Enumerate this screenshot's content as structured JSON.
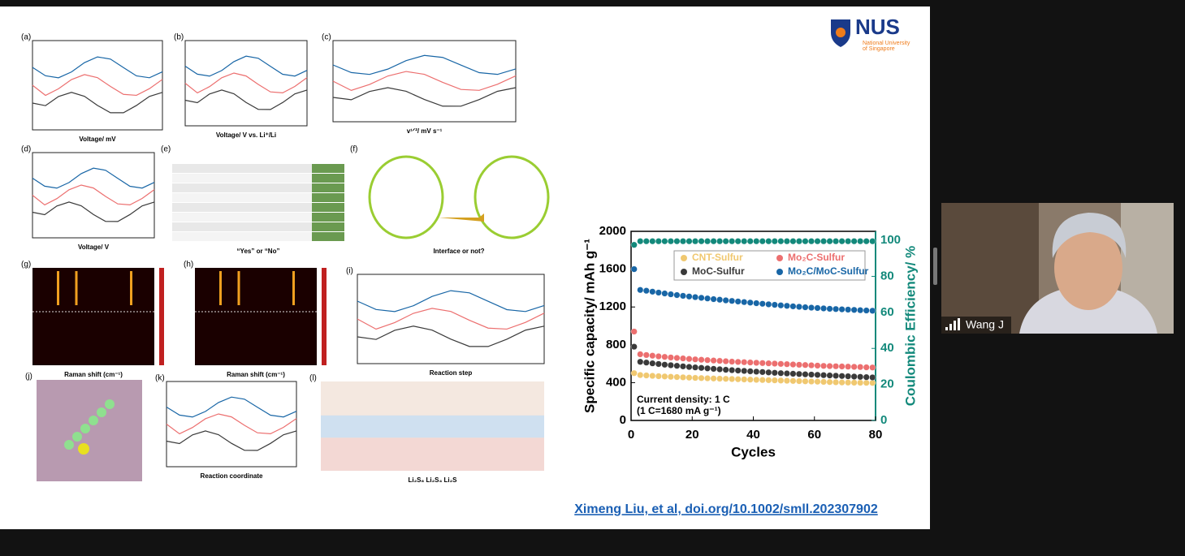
{
  "slide": {
    "logo": {
      "name": "NUS",
      "subtitle_1": "National University",
      "subtitle_2": "of Singapore"
    },
    "panels": [
      {
        "label": "(a)",
        "caption": "Voltage/ mV"
      },
      {
        "label": "(b)",
        "caption": "Voltage/ V vs. Li⁺/Li"
      },
      {
        "label": "(c)",
        "caption": "v¹ᐟ²/ mV s⁻¹"
      },
      {
        "label": "(d)",
        "caption": "Voltage/ V"
      },
      {
        "label": "(e)",
        "caption": "“Yes” or “No”"
      },
      {
        "label": "(f)",
        "caption": "Interface or not?"
      },
      {
        "label": "(g)",
        "caption": "Raman shift (cm⁻¹)"
      },
      {
        "label": "(h)",
        "caption": "Raman shift (cm⁻¹)"
      },
      {
        "label": "(i)",
        "caption": "Reaction step"
      },
      {
        "label": "(j)"
      },
      {
        "label": "(k)",
        "caption": "Reaction coordinate"
      },
      {
        "label": "(l)",
        "caption": "Li₂S₈     Li₂S₄     Li₂S"
      }
    ],
    "citation": "Ximeng Liu, et al, doi.org/10.1002/smll.202307902"
  },
  "chart_data": {
    "type": "scatter",
    "ylabel": "Specific capacity/ mAh g⁻¹",
    "y2label": "Coulombic Efficiency/ %",
    "xlabel": "Cycles",
    "annotation_1": "Current density: 1 C",
    "annotation_2": "(1 C=1680 mA g⁻¹)",
    "xlim": [
      0,
      80
    ],
    "xticks": [
      0,
      20,
      40,
      60,
      80
    ],
    "ylim": [
      0,
      2000
    ],
    "yticks": [
      0,
      400,
      800,
      1200,
      1600,
      2000
    ],
    "y2lim": [
      0,
      105
    ],
    "y2ticks": [
      0,
      20,
      40,
      60,
      80,
      100
    ],
    "x": [
      1,
      3,
      5,
      7,
      9,
      11,
      13,
      15,
      17,
      19,
      21,
      23,
      25,
      27,
      29,
      31,
      33,
      35,
      37,
      39,
      41,
      43,
      45,
      47,
      49,
      51,
      53,
      55,
      57,
      59,
      61,
      63,
      65,
      67,
      69,
      71,
      73,
      75,
      77,
      79
    ],
    "series": [
      {
        "name": "CNT-Sulfur",
        "color": "#f0c870",
        "values": [
          500,
          480,
          476,
          472,
          468,
          465,
          462,
          459,
          456,
          453,
          450,
          448,
          446,
          444,
          442,
          440,
          438,
          436,
          434,
          432,
          430,
          428,
          426,
          424,
          422,
          420,
          418,
          416,
          414,
          412,
          410,
          408,
          406,
          404,
          402,
          401,
          400,
          399,
          398,
          397
        ]
      },
      {
        "name": "Mo₂C-Sulfur",
        "color": "#ec6f6f",
        "values": [
          940,
          700,
          692,
          685,
          678,
          672,
          666,
          661,
          656,
          651,
          646,
          642,
          638,
          634,
          630,
          626,
          622,
          619,
          616,
          613,
          610,
          607,
          604,
          601,
          598,
          595,
          592,
          589,
          586,
          583,
          580,
          577,
          575,
          573,
          571,
          569,
          567,
          565,
          562,
          560
        ]
      },
      {
        "name": "MoC-Sulfur",
        "color": "#3a3a3a",
        "values": [
          780,
          620,
          612,
          604,
          597,
          590,
          584,
          578,
          572,
          566,
          561,
          556,
          551,
          546,
          541,
          536,
          532,
          528,
          524,
          520,
          516,
          512,
          508,
          504,
          500,
          497,
          494,
          491,
          488,
          485,
          482,
          479,
          476,
          473,
          470,
          467,
          464,
          461,
          458,
          455
        ]
      },
      {
        "name": "Mo₂C/MoC-Sulfur",
        "color": "#1866a6",
        "values": [
          1600,
          1380,
          1372,
          1362,
          1352,
          1343,
          1334,
          1326,
          1318,
          1311,
          1304,
          1297,
          1290,
          1283,
          1277,
          1270,
          1264,
          1258,
          1252,
          1246,
          1240,
          1234,
          1228,
          1223,
          1217,
          1212,
          1207,
          1202,
          1197,
          1193,
          1189,
          1185,
          1181,
          1178,
          1175,
          1172,
          1169,
          1166,
          1163,
          1160
        ]
      },
      {
        "axis": "y2",
        "color": "#13897b",
        "values": [
          97.5,
          99.5,
          99.5,
          99.5,
          99.5,
          99.5,
          99.5,
          99.5,
          99.5,
          99.5,
          99.5,
          99.5,
          99.5,
          99.5,
          99.5,
          99.5,
          99.5,
          99.5,
          99.5,
          99.5,
          99.5,
          99.5,
          99.5,
          99.5,
          99.5,
          99.5,
          99.5,
          99.5,
          99.5,
          99.5,
          99.5,
          99.5,
          99.5,
          99.5,
          99.5,
          99.5,
          99.5,
          99.5,
          99.5,
          99.5
        ]
      }
    ]
  },
  "participant": {
    "name": "Wang J"
  }
}
